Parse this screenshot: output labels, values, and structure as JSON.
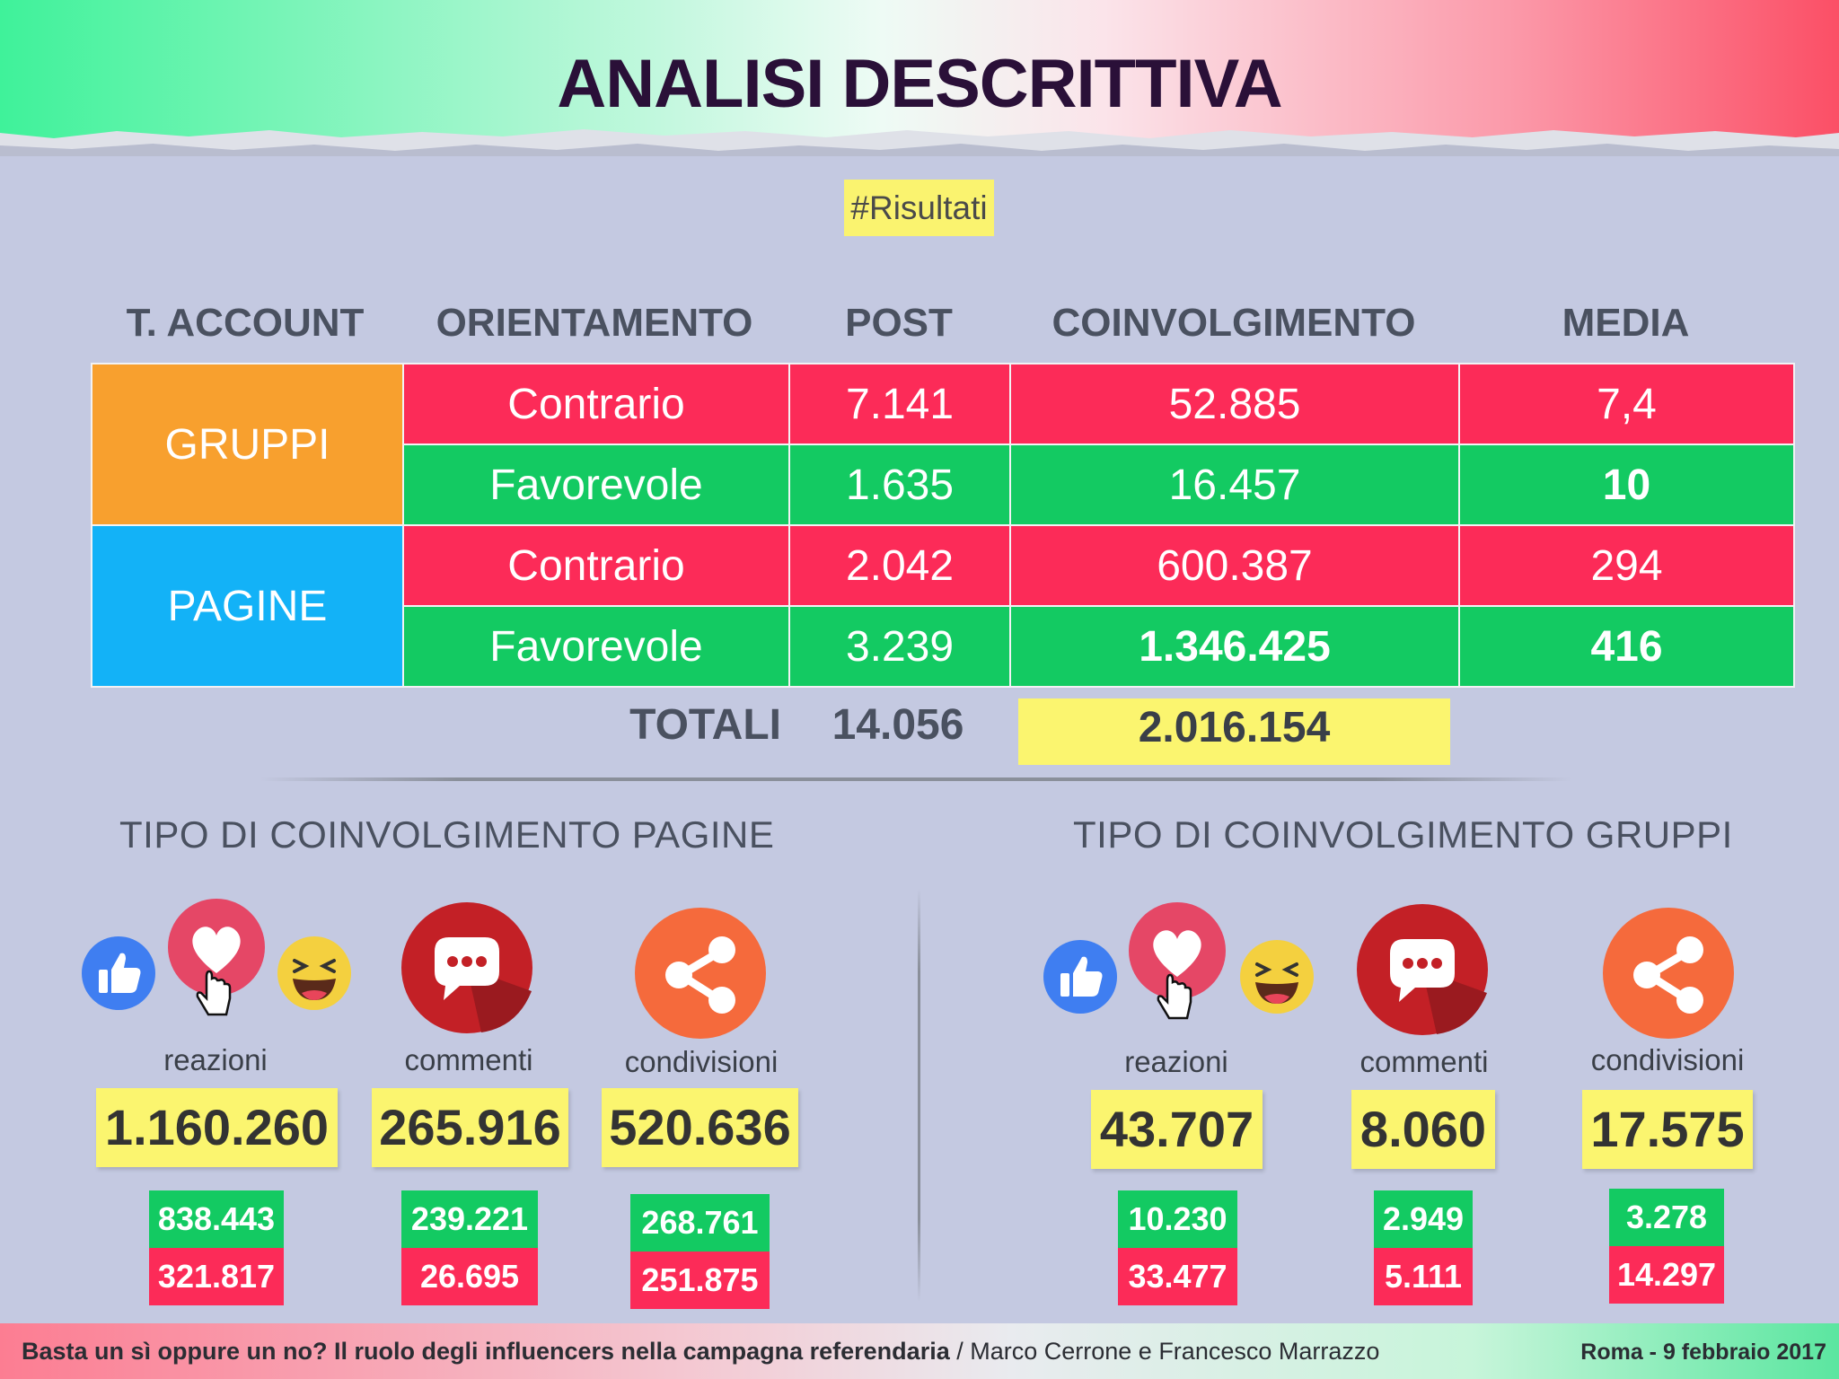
{
  "title": "ANALISI DESCRITTIVA",
  "tag": "#Risultati",
  "table": {
    "headers": [
      "T. ACCOUNT",
      "ORIENTAMENTO",
      "POST",
      "COINVOLGIMENTO",
      "MEDIA"
    ],
    "groups": [
      {
        "account": "GRUPPI",
        "color": "#f8a02e",
        "rows": [
          {
            "orientamento": "Contrario",
            "post": "7.141",
            "coinvolgimento": "52.885",
            "media": "7,4",
            "color": "#fc2b58"
          },
          {
            "orientamento": "Favorevole",
            "post": "1.635",
            "coinvolgimento": "16.457",
            "media": "10",
            "color": "#13ca62"
          }
        ]
      },
      {
        "account": "PAGINE",
        "color": "#13b2f7",
        "rows": [
          {
            "orientamento": "Contrario",
            "post": "2.042",
            "coinvolgimento": "600.387",
            "media": "294",
            "color": "#fc2b58"
          },
          {
            "orientamento": "Favorevole",
            "post": "3.239",
            "coinvolgimento": "1.346.425",
            "media": "416",
            "color": "#13ca62"
          }
        ]
      }
    ],
    "totals": {
      "label": "TOTALI",
      "post": "14.056",
      "coinvolgimento": "2.016.154"
    }
  },
  "pagine": {
    "title": "TIPO DI COINVOLGIMENTO PAGINE",
    "metrics": [
      {
        "label": "reazioni",
        "total": "1.160.260",
        "favorevole": "838.443",
        "contrario": "321.817"
      },
      {
        "label": "commenti",
        "total": "265.916",
        "favorevole": "239.221",
        "contrario": "26.695"
      },
      {
        "label": "condivisioni",
        "total": "520.636",
        "favorevole": "268.761",
        "contrario": "251.875"
      }
    ]
  },
  "gruppi": {
    "title": "TIPO DI COINVOLGIMENTO GRUPPI",
    "metrics": [
      {
        "label": "reazioni",
        "total": "43.707",
        "favorevole": "10.230",
        "contrario": "33.477"
      },
      {
        "label": "commenti",
        "total": "8.060",
        "favorevole": "2.949",
        "contrario": "5.111"
      },
      {
        "label": "condivisioni",
        "total": "17.575",
        "favorevole": "3.278",
        "contrario": "14.297"
      }
    ]
  },
  "icons": {
    "like": "thumbs-up-icon",
    "love": "heart-icon",
    "haha": "laughing-face-icon",
    "comment": "speech-bubble-icon",
    "share": "share-icon",
    "cursor": "hand-cursor-icon"
  },
  "footer": {
    "title": "Basta un sì oppure un no? Il ruolo degli influencers nella campagna referendaria",
    "separator": " / ",
    "authors": "Marco Cerrone e Francesco Marrazzo",
    "place_date": "Roma - 9 febbraio 2017"
  }
}
